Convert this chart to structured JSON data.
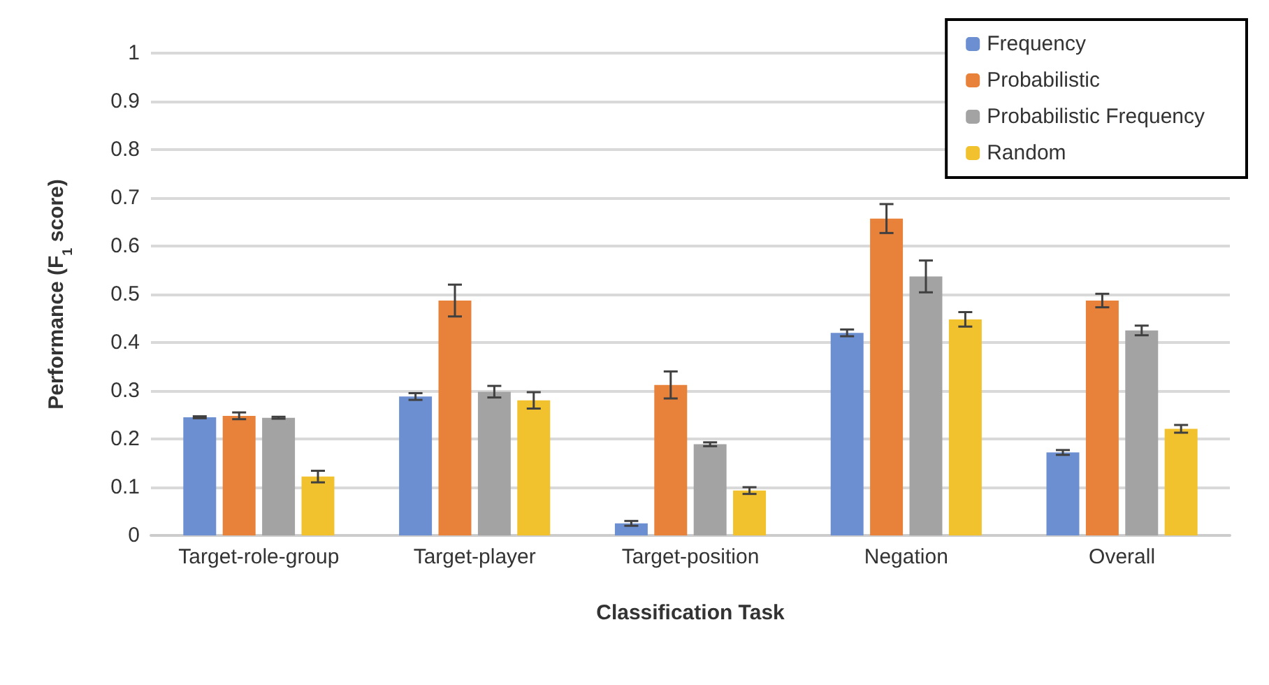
{
  "chart_data": {
    "type": "bar",
    "xlabel": "Classification Task",
    "ylabel": "Performance (F$_{1}$ score)",
    "categories": [
      "Target-role-group",
      "Target-player",
      "Target-position",
      "Negation",
      "Overall"
    ],
    "series": [
      {
        "name": "Frequency",
        "color": "#6b8fd0",
        "values": [
          0.245,
          0.288,
          0.025,
          0.42,
          0.172
        ],
        "errors": [
          0.002,
          0.007,
          0.005,
          0.007,
          0.005
        ]
      },
      {
        "name": "Probabilistic",
        "color": "#e8823a",
        "values": [
          0.248,
          0.487,
          0.312,
          0.657,
          0.487
        ],
        "errors": [
          0.007,
          0.033,
          0.028,
          0.03,
          0.014
        ]
      },
      {
        "name": "Probabilistic Frequency",
        "color": "#a3a3a3",
        "values": [
          0.244,
          0.298,
          0.189,
          0.537,
          0.425
        ],
        "errors": [
          0.002,
          0.012,
          0.004,
          0.033,
          0.01
        ]
      },
      {
        "name": "Random",
        "color": "#f2c12e",
        "values": [
          0.122,
          0.28,
          0.093,
          0.448,
          0.221
        ],
        "errors": [
          0.012,
          0.017,
          0.007,
          0.015,
          0.008
        ]
      }
    ],
    "ylim": [
      0,
      1
    ],
    "yticks": [
      0,
      0.1,
      0.2,
      0.3,
      0.4,
      0.5,
      0.6,
      0.7,
      0.8,
      0.9,
      1
    ],
    "grid": "y",
    "legend": "top right"
  }
}
